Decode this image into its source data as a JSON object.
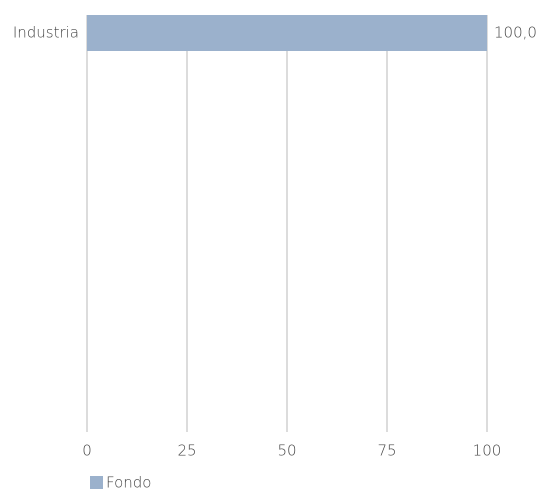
{
  "chart_data": {
    "type": "hbar",
    "categories": [
      "Industria"
    ],
    "series": [
      {
        "name": "Fondo",
        "color": "#9bb1cc",
        "values": [
          100
        ],
        "value_labels": [
          "100,0"
        ]
      }
    ],
    "xlim": [
      0,
      100
    ],
    "xticks": [
      0,
      25,
      50,
      75,
      100
    ],
    "grid": true,
    "legend": "bottom-left"
  }
}
